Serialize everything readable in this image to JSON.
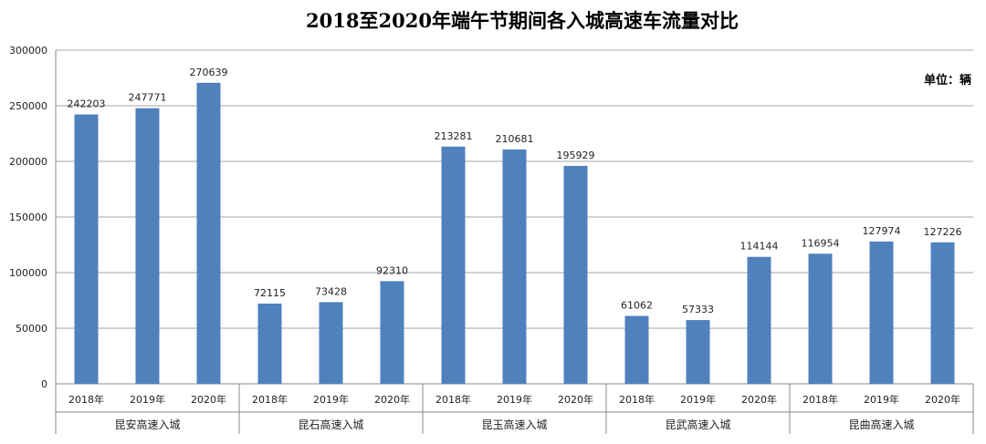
{
  "chart_data": {
    "type": "bar",
    "title": "2018至2020年端午节期间各入城高速车流量对比",
    "unit_label": "单位：辆",
    "xlabel": "",
    "ylabel": "",
    "ylim": [
      0,
      300000
    ],
    "yticks": [
      0,
      50000,
      100000,
      150000,
      200000,
      250000,
      300000
    ],
    "grid": true,
    "color": "#4f81bd",
    "groups": [
      {
        "name": "昆安高速入城",
        "years": [
          "2018年",
          "2019年",
          "2020年"
        ],
        "values": [
          242203,
          247771,
          270639
        ]
      },
      {
        "name": "昆石高速入城",
        "years": [
          "2018年",
          "2019年",
          "2020年"
        ],
        "values": [
          72115,
          73428,
          92310
        ]
      },
      {
        "name": "昆玉高速入城",
        "years": [
          "2018年",
          "2019年",
          "2020年"
        ],
        "values": [
          213281,
          210681,
          195929
        ]
      },
      {
        "name": "昆武高速入城",
        "years": [
          "2018年",
          "2019年",
          "2020年"
        ],
        "values": [
          61062,
          57333,
          114144
        ]
      },
      {
        "name": "昆曲高速入城",
        "years": [
          "2018年",
          "2019年",
          "2020年"
        ],
        "values": [
          116954,
          127974,
          127226
        ]
      }
    ]
  }
}
